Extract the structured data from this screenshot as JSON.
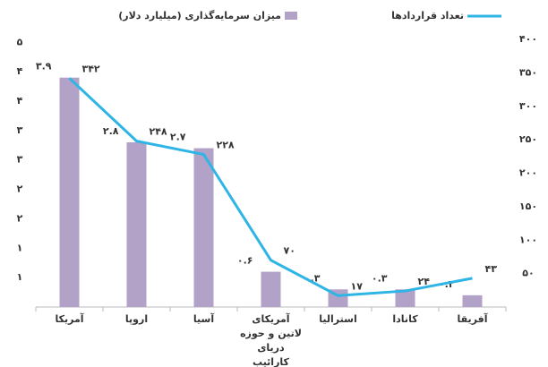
{
  "chart_data": {
    "type": "bar_line",
    "categories": [
      "آمریکا",
      "اروپا",
      "آسیا",
      "آمریکای لاتین و حوزه دریای کارائیب",
      "استرالیا",
      "کانادا",
      "آفریقا"
    ],
    "series": [
      {
        "name": "میزان سرمایه‌گذاری (میلیارد دلار)",
        "type": "bar",
        "color": "#b3a2c7",
        "values": [
          3.9,
          2.8,
          2.7,
          0.6,
          0.3,
          0.3,
          0.2
        ],
        "value_labels": [
          "۳.۹",
          "۲.۸",
          "۲.۷",
          "۰.۶",
          "۰.۳",
          "۰.۳",
          "۰.۲"
        ]
      },
      {
        "name": "تعداد قراردادها",
        "type": "line",
        "color": "#2fb4e6",
        "axis": "y2",
        "values": [
          342,
          248,
          228,
          70,
          17,
          24,
          43
        ],
        "value_labels": [
          "۳۴۲",
          "۲۴۸",
          "۲۲۸",
          "۷۰",
          "۱۷",
          "۲۴",
          "۴۳"
        ]
      }
    ],
    "ylim": [
      0,
      4.55
    ],
    "yticks": [
      {
        "value": 4.5,
        "label": "۵"
      },
      {
        "value": 4,
        "label": "۴"
      },
      {
        "value": 3.5,
        "label": "۴"
      },
      {
        "value": 3,
        "label": "۳"
      },
      {
        "value": 2.5,
        "label": "۳"
      },
      {
        "value": 2,
        "label": "۲"
      },
      {
        "value": 1.5,
        "label": "۲"
      },
      {
        "value": 1,
        "label": "۱"
      },
      {
        "value": 0.5,
        "label": "۱"
      }
    ],
    "y2lim": [
      0,
      400
    ],
    "y2ticks": [
      {
        "value": 400,
        "label": "۴۰۰"
      },
      {
        "value": 350,
        "label": "۳۵۰"
      },
      {
        "value": 300,
        "label": "۳۰۰"
      },
      {
        "value": 250,
        "label": "۲۵۰"
      },
      {
        "value": 200,
        "label": "۲۰۰"
      },
      {
        "value": 150,
        "label": "۱۵۰"
      },
      {
        "value": 100,
        "label": "۱۰۰"
      },
      {
        "value": 50,
        "label": "۵۰"
      }
    ],
    "legend": "top"
  }
}
